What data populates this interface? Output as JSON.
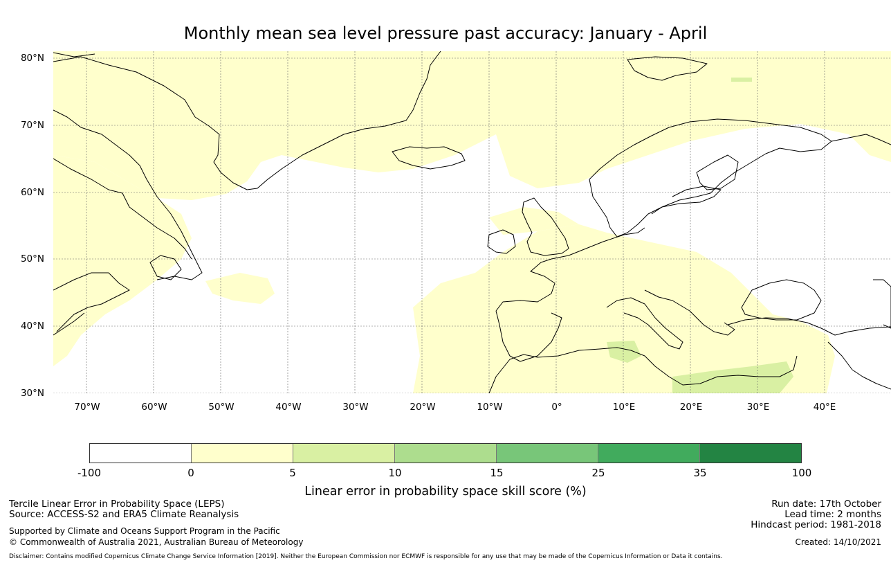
{
  "title": "Monthly mean sea level pressure past accuracy: January - April",
  "map": {
    "lat_labels": [
      "80°N",
      "70°N",
      "60°N",
      "50°N",
      "40°N",
      "30°N"
    ],
    "lon_labels": [
      "70°W",
      "60°W",
      "50°W",
      "40°W",
      "30°W",
      "20°W",
      "10°W",
      "0°",
      "10°E",
      "20°E",
      "30°E",
      "40°E"
    ],
    "extent": {
      "lon_min": -75,
      "lon_max": 50,
      "lat_min": 30,
      "lat_max": 81
    },
    "land_color": "#ffffff",
    "coast_color": "#000000"
  },
  "colorbar": {
    "ticks": [
      "-100",
      "0",
      "5",
      "10",
      "15",
      "25",
      "35",
      "100"
    ],
    "colors": [
      "#ffffff",
      "#ffffcc",
      "#d9f0a3",
      "#addd8e",
      "#78c679",
      "#41ab5d",
      "#238443"
    ],
    "label": "Linear error in probability space skill score (%)"
  },
  "footer": {
    "left_line1": "Tercile Linear Error in Probability Space (LEPS)",
    "left_line2": "Source: ACCESS-S2 and ERA5 Climate Reanalysis",
    "left_line3": "Supported by Climate and Oceans Support Program in the Pacific",
    "left_line4": "© Commonwealth of Australia 2021, Australian Bureau of Meteorology",
    "right_line1": "Run date: 17th October",
    "right_line2": "Lead time: 2 months",
    "right_line3": "Hindcast period: 1981-2018",
    "right_line4": "Created: 14/10/2021",
    "disclaimer": "Disclaimer: Contains modified Copernicus Climate Change Service Information [2019]. Neither the European Commission nor ECMWF is responsible for any use that may be made of the Copernicus Information or Data it contains."
  }
}
